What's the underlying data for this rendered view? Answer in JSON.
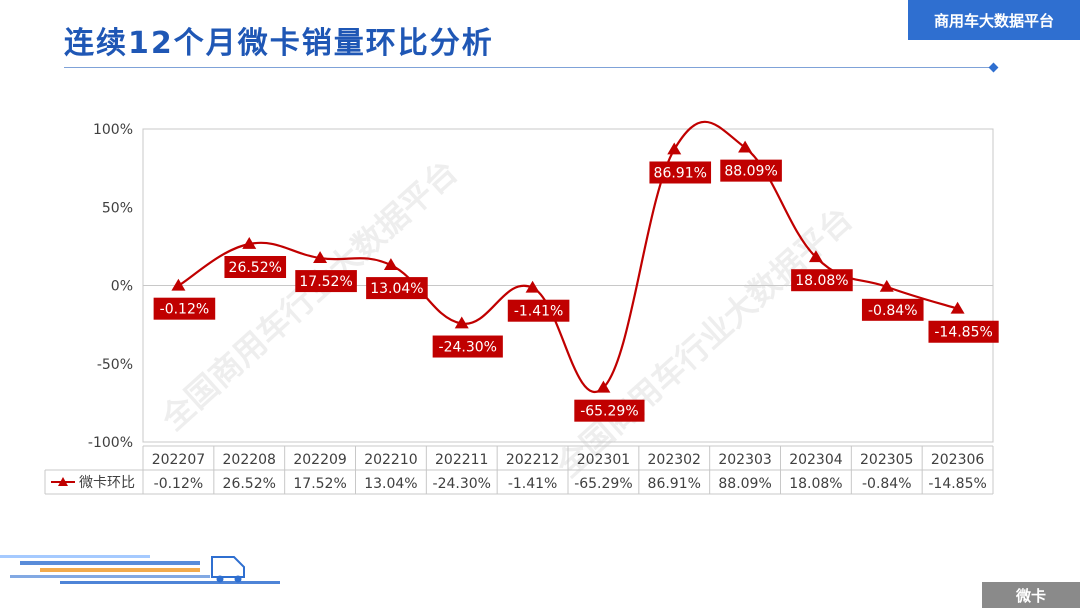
{
  "header": {
    "title": "连续12个月微卡销量环比分析",
    "brand": "商用车大数据平台"
  },
  "footer": {
    "tag": "微卡"
  },
  "watermark": {
    "text": "全国商用车行业大数据平台"
  },
  "colors": {
    "series": "#c00000",
    "label_bg": "#c00000",
    "accent": "#2f6fd0"
  },
  "chart_data": {
    "type": "line",
    "smooth": true,
    "marker": "triangle",
    "categories": [
      "202207",
      "202208",
      "202209",
      "202210",
      "202211",
      "202212",
      "202301",
      "202302",
      "202303",
      "202304",
      "202305",
      "202306"
    ],
    "series": [
      {
        "name": "微卡环比",
        "values": [
          -0.12,
          26.52,
          17.52,
          13.04,
          -24.3,
          -1.41,
          -65.29,
          86.91,
          88.09,
          18.08,
          -0.84,
          -14.85
        ],
        "labels": [
          "-0.12%",
          "26.52%",
          "17.52%",
          "13.04%",
          "-24.30%",
          "-1.41%",
          "-65.29%",
          "86.91%",
          "88.09%",
          "18.08%",
          "-0.84%",
          "-14.85%"
        ]
      }
    ],
    "ylim": [
      -100,
      100
    ],
    "yticks": [
      "100%",
      "50%",
      "0%",
      "-50%",
      "-100%"
    ],
    "ytick_values": [
      100,
      50,
      0,
      -50,
      -100
    ],
    "data_table": true
  }
}
